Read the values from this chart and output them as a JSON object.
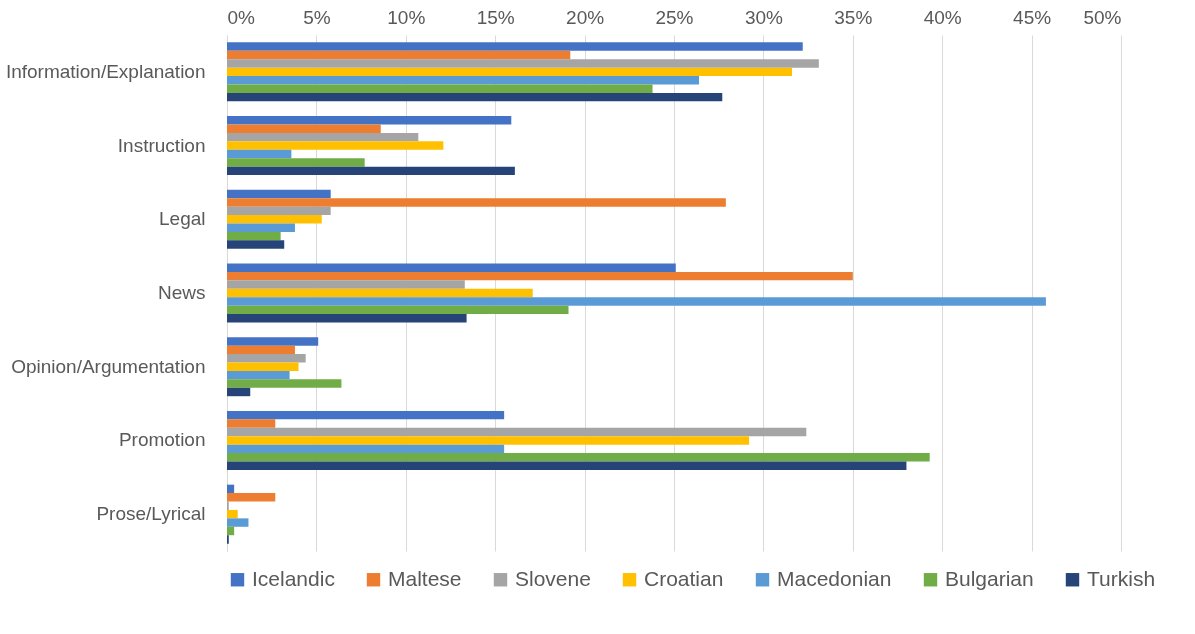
{
  "chart_data": {
    "type": "bar",
    "orientation": "horizontal",
    "categories": [
      "Information/Explanation",
      "Instruction",
      "Legal",
      "News",
      "Opinion/Argumentation",
      "Promotion",
      "Prose/Lyrical"
    ],
    "series": [
      {
        "name": "Icelandic",
        "color": "#4472c4",
        "values": [
          32.2,
          15.9,
          5.8,
          25.1,
          5.1,
          15.5,
          0.4
        ]
      },
      {
        "name": "Maltese",
        "color": "#ed7d31",
        "values": [
          19.2,
          8.6,
          27.9,
          35.0,
          3.8,
          2.7,
          2.7
        ]
      },
      {
        "name": "Slovene",
        "color": "#a5a5a5",
        "values": [
          33.1,
          10.7,
          5.8,
          13.3,
          4.4,
          32.4,
          0.1
        ]
      },
      {
        "name": "Croatian",
        "color": "#ffc000",
        "values": [
          31.6,
          12.1,
          5.3,
          17.1,
          4.0,
          29.2,
          0.6
        ]
      },
      {
        "name": "Macedonian",
        "color": "#5b9bd5",
        "values": [
          26.4,
          3.6,
          3.8,
          45.8,
          3.5,
          15.5,
          1.2
        ]
      },
      {
        "name": "Bulgarian",
        "color": "#70ad47",
        "values": [
          23.8,
          7.7,
          3.0,
          19.1,
          6.4,
          39.3,
          0.4
        ]
      },
      {
        "name": "Turkish",
        "color": "#264478",
        "values": [
          27.7,
          16.1,
          3.2,
          13.4,
          1.3,
          38.0,
          0.1
        ]
      }
    ],
    "xlim": [
      0,
      50
    ],
    "xticks": [
      {
        "value": 0,
        "label": "0%"
      },
      {
        "value": 5,
        "label": "5%"
      },
      {
        "value": 10,
        "label": "10%"
      },
      {
        "value": 15,
        "label": "15%"
      },
      {
        "value": 20,
        "label": "20%"
      },
      {
        "value": 25,
        "label": "25%"
      },
      {
        "value": 30,
        "label": "30%"
      },
      {
        "value": 35,
        "label": "35%"
      },
      {
        "value": 40,
        "label": "40%"
      },
      {
        "value": 45,
        "label": "45%"
      },
      {
        "value": 50,
        "label": "50%"
      }
    ],
    "grid": "x",
    "legend": "bottom"
  }
}
